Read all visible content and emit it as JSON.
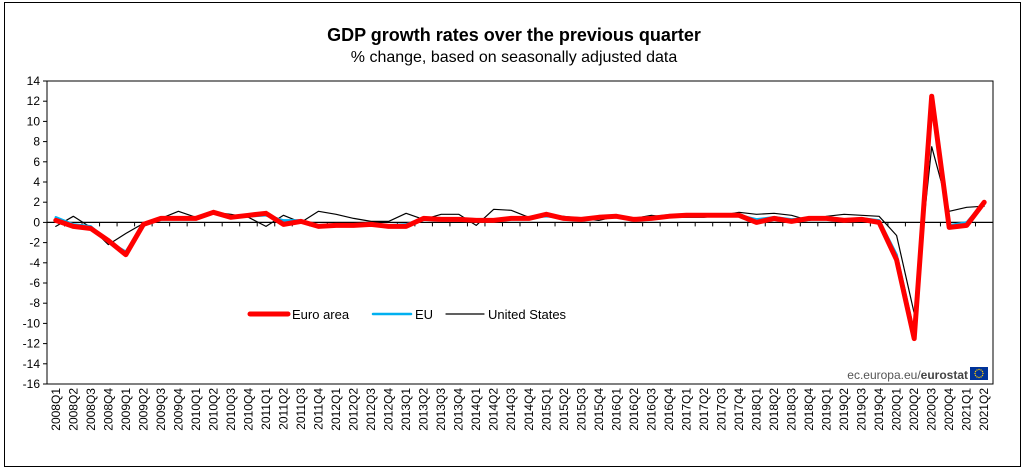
{
  "chart_data": {
    "type": "line",
    "title": "GDP growth rates over the previous quarter",
    "subtitle": "% change, based on seasonally adjusted data",
    "xlabel": "",
    "ylabel": "",
    "ylim": [
      -16,
      14
    ],
    "yticks": [
      14,
      12,
      10,
      8,
      6,
      4,
      2,
      0,
      -2,
      -4,
      -6,
      -8,
      -10,
      -12,
      -14,
      -16
    ],
    "grid": false,
    "legend_position": "lower-left",
    "categories": [
      "2008Q1",
      "2008Q2",
      "2008Q3",
      "2008Q4",
      "2009Q1",
      "2009Q2",
      "2009Q3",
      "2009Q4",
      "2010Q1",
      "2010Q2",
      "2010Q3",
      "2010Q4",
      "2011Q1",
      "2011Q2",
      "2011Q3",
      "2011Q4",
      "2012Q1",
      "2012Q2",
      "2012Q3",
      "2012Q4",
      "2013Q1",
      "2013Q2",
      "2013Q3",
      "2013Q4",
      "2014Q1",
      "2014Q2",
      "2014Q3",
      "2014Q4",
      "2015Q1",
      "2015Q2",
      "2015Q3",
      "2015Q4",
      "2016Q1",
      "2016Q2",
      "2016Q3",
      "2016Q4",
      "2017Q1",
      "2017Q2",
      "2017Q3",
      "2017Q4",
      "2018Q1",
      "2018Q2",
      "2018Q3",
      "2018Q4",
      "2019Q1",
      "2019Q2",
      "2019Q3",
      "2019Q4",
      "2020Q1",
      "2020Q2",
      "2020Q3",
      "2020Q4",
      "2021Q1",
      "2021Q2"
    ],
    "series": [
      {
        "name": "Euro area",
        "color": "#ff0000",
        "width": "thick",
        "values": [
          0.2,
          -0.4,
          -0.6,
          -1.8,
          -3.2,
          -0.2,
          0.4,
          0.4,
          0.4,
          1.0,
          0.5,
          0.7,
          0.9,
          -0.2,
          0.1,
          -0.4,
          -0.3,
          -0.3,
          -0.2,
          -0.4,
          -0.4,
          0.4,
          0.3,
          0.3,
          0.2,
          0.2,
          0.4,
          0.4,
          0.8,
          0.4,
          0.3,
          0.5,
          0.6,
          0.3,
          0.4,
          0.6,
          0.7,
          0.7,
          0.7,
          0.7,
          0.0,
          0.4,
          0.1,
          0.4,
          0.4,
          0.2,
          0.3,
          0.0,
          -3.7,
          -11.5,
          12.5,
          -0.5,
          -0.3,
          2.0
        ]
      },
      {
        "name": "EU",
        "color": "#00b0f0",
        "width": "medium",
        "values": [
          0.5,
          -0.2,
          -0.4,
          -1.9,
          -2.9,
          -0.2,
          0.3,
          0.4,
          0.5,
          0.9,
          0.6,
          0.6,
          0.7,
          0.2,
          0.2,
          -0.3,
          -0.2,
          -0.2,
          -0.1,
          -0.3,
          -0.2,
          0.4,
          0.3,
          0.4,
          0.3,
          0.3,
          0.4,
          0.5,
          0.6,
          0.5,
          0.4,
          0.5,
          0.5,
          0.4,
          0.5,
          0.7,
          0.7,
          0.7,
          0.8,
          0.7,
          0.3,
          0.5,
          0.3,
          0.4,
          0.5,
          0.3,
          0.4,
          0.2,
          -3.2,
          -11.0,
          11.6,
          -0.3,
          0.0,
          2.0
        ]
      },
      {
        "name": "United States",
        "color": "#000000",
        "width": "thin",
        "values": [
          -0.4,
          0.6,
          -0.5,
          -2.2,
          -1.1,
          -0.1,
          0.4,
          1.1,
          0.5,
          1.0,
          0.8,
          0.5,
          -0.4,
          0.7,
          0.0,
          1.1,
          0.8,
          0.4,
          0.1,
          0.1,
          0.9,
          0.3,
          0.8,
          0.8,
          -0.3,
          1.3,
          1.2,
          0.5,
          0.8,
          0.6,
          0.4,
          0.2,
          0.6,
          0.4,
          0.7,
          0.5,
          0.5,
          0.5,
          0.7,
          1.0,
          0.8,
          0.9,
          0.7,
          0.2,
          0.6,
          0.8,
          0.7,
          0.6,
          -1.3,
          -9.0,
          7.5,
          1.1,
          1.5,
          1.6
        ]
      }
    ]
  },
  "credit": {
    "source_text": "ec.europa.eu/",
    "brand_text": "eurostat",
    "flag_color": "#003399",
    "star_color": "#ffcc00"
  }
}
